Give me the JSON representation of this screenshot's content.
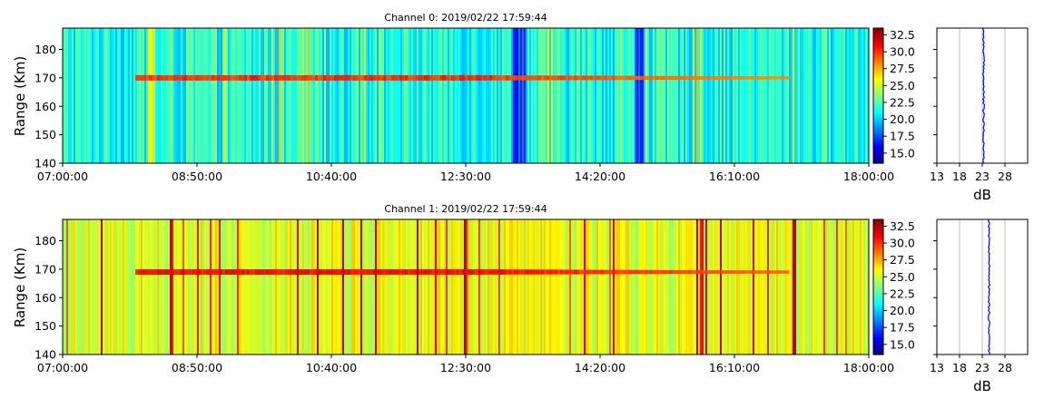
{
  "chart_data": [
    {
      "type": "heatmap",
      "title": "Channel 0: 2019/02/22 17:59:44",
      "ylabel": "Range (Km)",
      "xlabel": "",
      "x_ticks": [
        "07:00:00",
        "08:50:00",
        "10:40:00",
        "12:30:00",
        "14:20:00",
        "16:10:00",
        "18:00:00"
      ],
      "y_ticks": [
        140,
        150,
        160,
        170,
        180
      ],
      "xlim": [
        "07:00:00",
        "18:00:00"
      ],
      "ylim": [
        140,
        187.5
      ],
      "colormap": "jet",
      "colorbar": {
        "min": 13.5,
        "max": 33.5,
        "ticks": [
          "15.0",
          "17.5",
          "20.0",
          "22.5",
          "25.0",
          "27.5",
          "30.0",
          "32.5"
        ]
      },
      "echo_layer_range_km": 170,
      "side_profile": {
        "xlabel": "dB",
        "x_ticks": [
          13,
          18,
          23,
          28
        ],
        "xlim": [
          13,
          33
        ],
        "ylim": [
          140,
          187.5
        ],
        "mean_power_db": 23.3,
        "grid": true
      }
    },
    {
      "type": "heatmap",
      "title": "Channel 1: 2019/02/22 17:59:44",
      "ylabel": "Range (Km)",
      "xlabel": "",
      "x_ticks": [
        "07:00:00",
        "08:50:00",
        "10:40:00",
        "12:30:00",
        "14:20:00",
        "16:10:00",
        "18:00:00"
      ],
      "y_ticks": [
        140,
        150,
        160,
        170,
        180
      ],
      "xlim": [
        "07:00:00",
        "18:00:00"
      ],
      "ylim": [
        140,
        187.5
      ],
      "colormap": "jet",
      "colorbar": {
        "min": 13.5,
        "max": 33.5,
        "ticks": [
          "15.0",
          "17.5",
          "20.0",
          "22.5",
          "25.0",
          "27.5",
          "30.0",
          "32.5"
        ]
      },
      "echo_layer_range_km": 169,
      "side_profile": {
        "xlabel": "dB",
        "x_ticks": [
          13,
          18,
          23,
          28
        ],
        "xlim": [
          13,
          33
        ],
        "ylim": [
          140,
          187.5
        ],
        "mean_power_db": 24.5,
        "grid": true
      }
    }
  ]
}
